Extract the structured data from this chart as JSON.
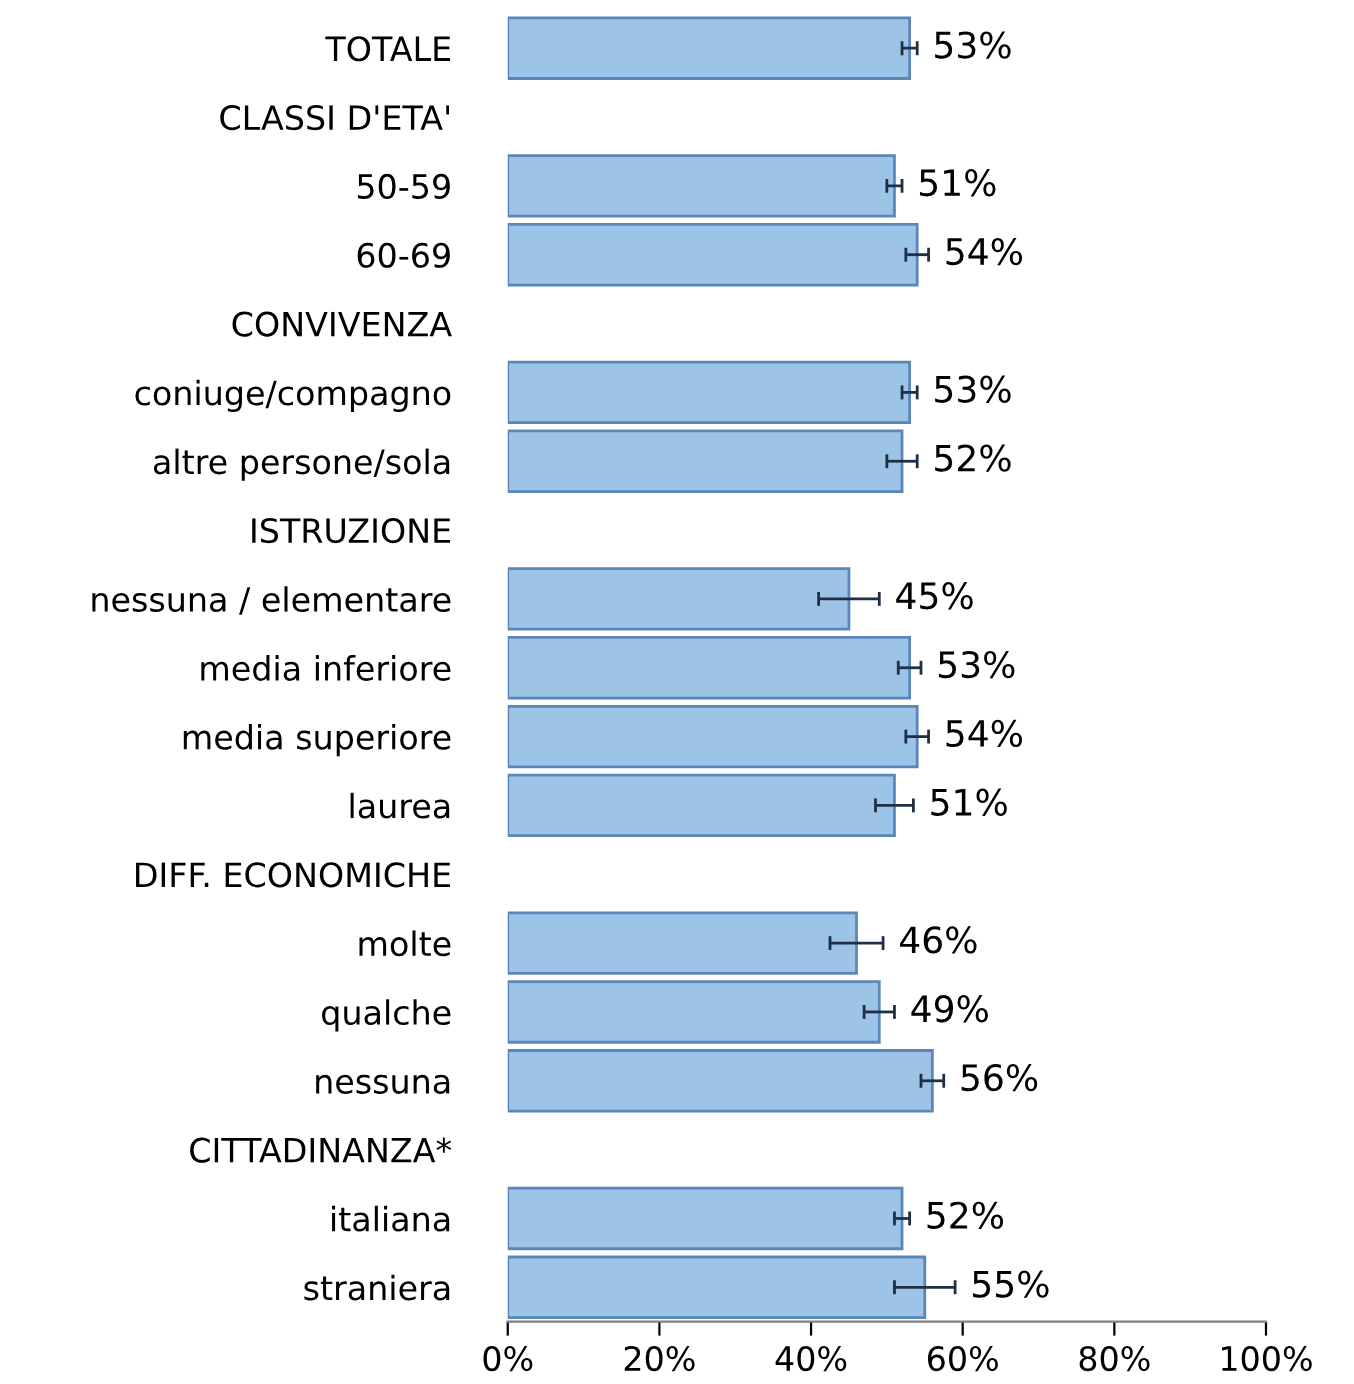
{
  "chart_data": {
    "type": "bar",
    "orientation": "horizontal",
    "categories": [
      "TOTALE",
      "CLASSI D'ETA'",
      "50-59",
      "60-69",
      "CONVIVENZA",
      "coniuge/compagno",
      "altre persone/sola",
      "ISTRUZIONE",
      "nessuna / elementare",
      "media inferiore",
      "media superiore",
      "laurea",
      "DIFF. ECONOMICHE",
      "molte",
      "qualche",
      "nessuna",
      "CITTADINANZA*",
      "italiana",
      "straniera"
    ],
    "values": [
      53,
      null,
      51,
      54,
      null,
      53,
      52,
      null,
      45,
      53,
      54,
      51,
      null,
      46,
      49,
      56,
      null,
      52,
      55
    ],
    "errors": [
      1,
      null,
      1,
      1.5,
      null,
      1,
      2,
      null,
      4,
      1.5,
      1.5,
      2.5,
      null,
      3.5,
      2,
      1.5,
      null,
      1,
      4
    ],
    "value_labels": [
      "53%",
      null,
      "51%",
      "54%",
      null,
      "53%",
      "52%",
      null,
      "45%",
      "53%",
      "54%",
      "51%",
      null,
      "46%",
      "49%",
      "56%",
      null,
      "52%",
      "55%"
    ],
    "color": "#9dc3e6",
    "xlim": [
      0,
      100
    ],
    "xticks": [
      {
        "value": 0,
        "label": "0%"
      },
      {
        "value": 20,
        "label": "20%"
      },
      {
        "value": 40,
        "label": "40%"
      },
      {
        "value": 60,
        "label": "60%"
      },
      {
        "value": 80,
        "label": "80%"
      },
      {
        "value": 100,
        "label": "100%"
      }
    ],
    "grid": false,
    "legend": false
  }
}
